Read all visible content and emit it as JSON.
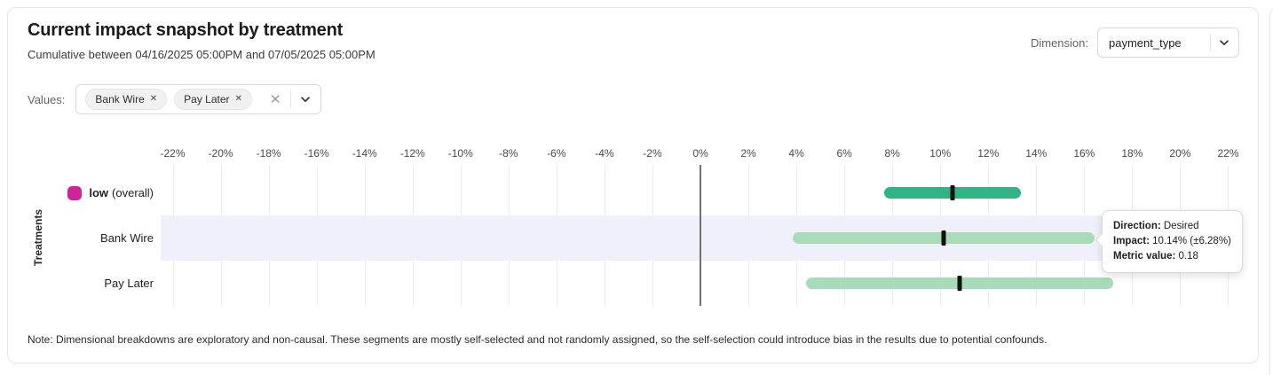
{
  "header": {
    "title": "Current impact snapshot by treatment",
    "subtitle": "Cumulative between 04/16/2025 05:00PM and 07/05/2025 05:00PM",
    "dimension_label": "Dimension:",
    "dimension_value": "payment_type"
  },
  "filters": {
    "values_label": "Values:",
    "chips": [
      {
        "label": "Bank Wire"
      },
      {
        "label": "Pay Later"
      }
    ],
    "remove_glyph": "✕",
    "clear_glyph": "✕"
  },
  "chart_data": {
    "type": "bar",
    "orientation": "horizontal",
    "title": "Current impact snapshot by treatment",
    "ylabel": "Treatments",
    "x_unit": "%",
    "xlim": [
      -22.5,
      22.5
    ],
    "x_ticks": [
      -22,
      -20,
      -18,
      -16,
      -14,
      -12,
      -10,
      -8,
      -6,
      -4,
      -2,
      0,
      2,
      4,
      6,
      8,
      10,
      12,
      14,
      16,
      18,
      20,
      22
    ],
    "grid": true,
    "zero_line": true,
    "highlight_row_color": "#f0f0fa",
    "rows": [
      {
        "label": "low",
        "label_bold": true,
        "label_suffix": "(overall)",
        "legend_color": "#d2219c",
        "impact_pct": 10.5,
        "ci_pct": 2.85,
        "bar_color": "#2eb583",
        "marker_color": "#101010",
        "highlighted": false
      },
      {
        "label": "Bank Wire",
        "impact_pct": 10.14,
        "ci_pct": 6.28,
        "bar_color": "#a8dcb8",
        "marker_color": "#101010",
        "highlighted": true,
        "direction": "Desired",
        "metric_value": 0.18
      },
      {
        "label": "Pay Later",
        "impact_pct": 10.8,
        "ci_pct": 6.4,
        "bar_color": "#a8dcb8",
        "marker_color": "#101010",
        "highlighted": false
      }
    ]
  },
  "tooltip": {
    "rows": [
      {
        "label": "Direction:",
        "value": "Desired"
      },
      {
        "label": "Impact:",
        "value": "10.14% (±6.28%)"
      },
      {
        "label": "Metric value:",
        "value": "0.18"
      }
    ]
  },
  "note": "Note: Dimensional breakdowns are exploratory and non-causal. These segments are mostly self-selected and not randomly assigned, so the self-selection could introduce bias in the results due to potential confounds."
}
